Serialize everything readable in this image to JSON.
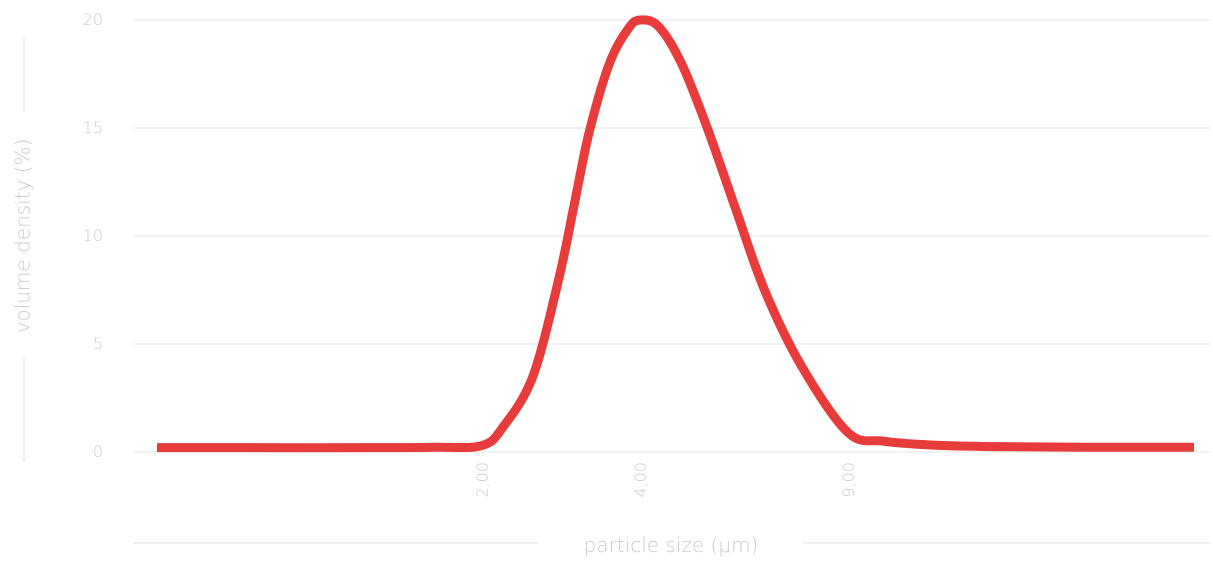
{
  "chart_data": {
    "type": "line",
    "title": "",
    "xlabel": "particle size (μm)",
    "ylabel": "volume density (%)",
    "ylim": [
      0,
      20
    ],
    "yticks": [
      "0",
      "5",
      "10",
      "15",
      "20"
    ],
    "xtick_labels": [
      "2,00",
      "4,00",
      "9,00"
    ],
    "grid": true,
    "series": [
      {
        "color": "#e83c3c",
        "x": [
          0.3,
          0.5,
          1.0,
          1.5,
          2.0,
          2.2,
          2.5,
          2.8,
          3.0,
          3.2,
          3.5,
          3.8,
          4.0,
          4.3,
          4.7,
          5.2,
          5.8,
          6.5,
          7.5,
          9.0,
          10.5,
          13,
          17,
          25,
          40
        ],
        "y": [
          0.2,
          0.2,
          0.2,
          0.22,
          0.3,
          1.2,
          3.5,
          8.0,
          11.5,
          14.8,
          18.0,
          19.6,
          20.0,
          19.7,
          18.0,
          15.0,
          11.3,
          7.5,
          4.0,
          0.9,
          0.5,
          0.32,
          0.25,
          0.22,
          0.22
        ]
      }
    ]
  }
}
